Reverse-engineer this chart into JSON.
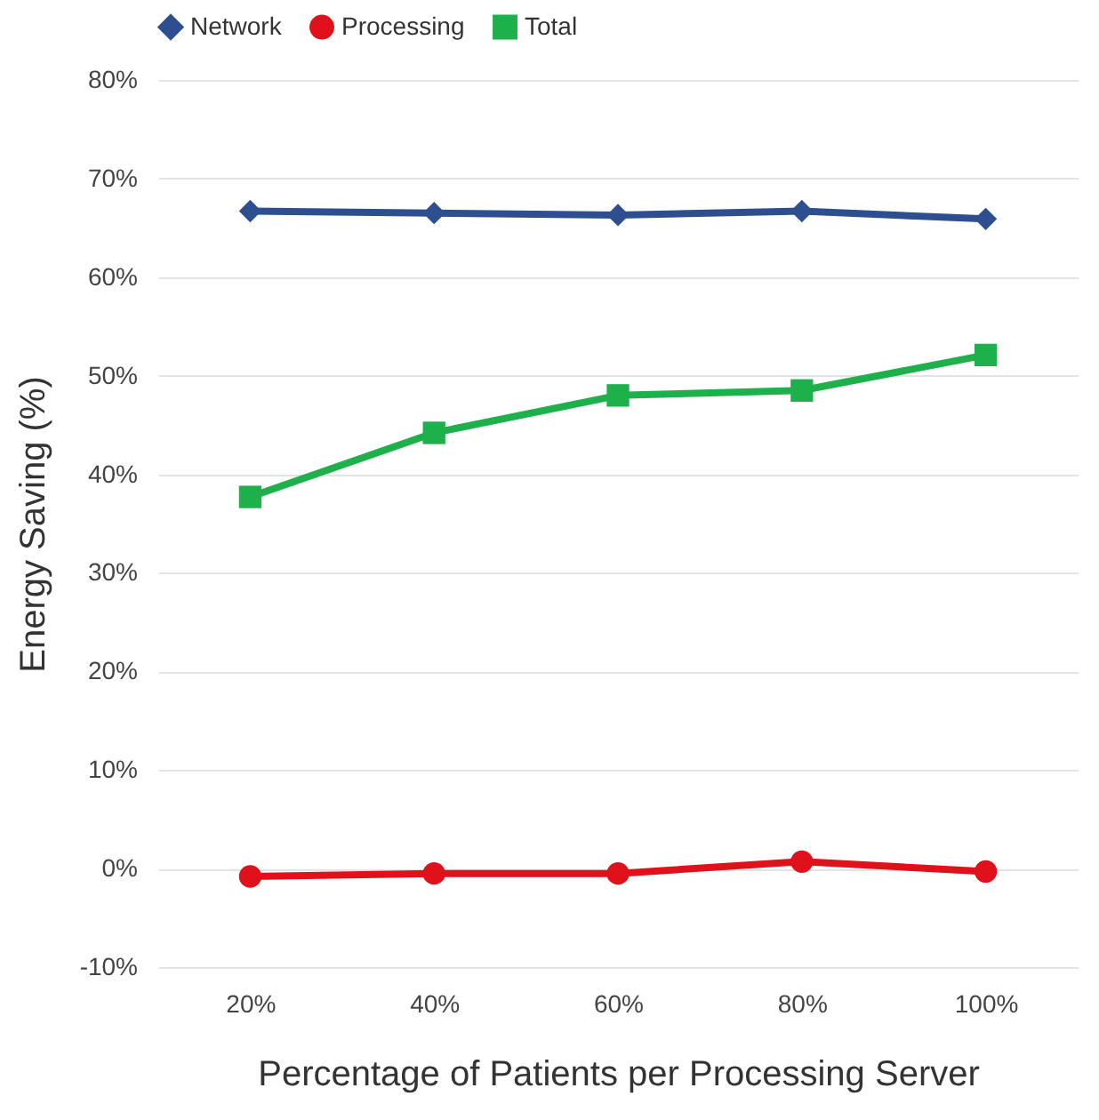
{
  "chart_data": {
    "type": "line",
    "xlabel": "Percentage of Patients per Processing Server",
    "ylabel": "Energy Saving (%)",
    "categories": [
      "20%",
      "40%",
      "60%",
      "80%",
      "100%"
    ],
    "series": [
      {
        "name": "Network",
        "color": "#2e4f8f",
        "marker": "diamond",
        "values": [
          66.7,
          66.5,
          66.3,
          66.7,
          65.9
        ]
      },
      {
        "name": "Processing",
        "color": "#e0111b",
        "marker": "circle",
        "values": [
          -0.8,
          -0.5,
          -0.5,
          0.7,
          -0.3
        ]
      },
      {
        "name": "Total",
        "color": "#1db04b",
        "marker": "square",
        "values": [
          37.7,
          44.2,
          48.0,
          48.5,
          52.1
        ]
      }
    ],
    "ylim": [
      -10,
      80
    ],
    "yticks": [
      {
        "value": -10,
        "label": "-10%"
      },
      {
        "value": 0,
        "label": "0%"
      },
      {
        "value": 10,
        "label": "10%"
      },
      {
        "value": 20,
        "label": "20%"
      },
      {
        "value": 30,
        "label": "30%"
      },
      {
        "value": 40,
        "label": "40%"
      },
      {
        "value": 50,
        "label": "50%"
      },
      {
        "value": 60,
        "label": "60%"
      },
      {
        "value": 70,
        "label": "70%"
      },
      {
        "value": 80,
        "label": "80%"
      }
    ],
    "grid": "y",
    "legend": "top",
    "line_style": "solid"
  }
}
